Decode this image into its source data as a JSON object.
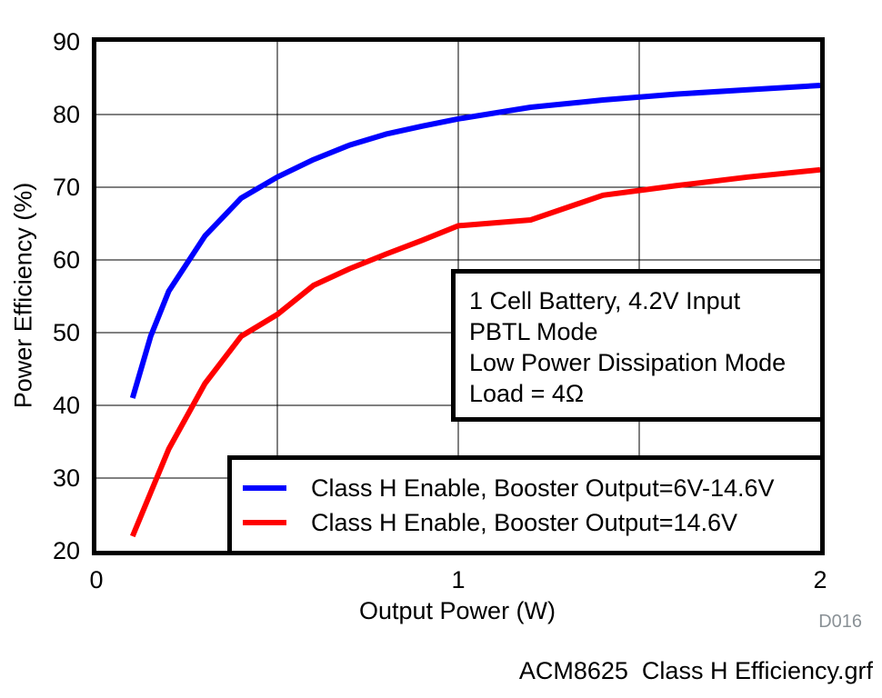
{
  "figure": {
    "watermark": "D016",
    "footer": "ACM8625  Class H Efficiency.grf"
  },
  "chart_data": {
    "type": "line",
    "title": "",
    "xlabel": "Output Power (W)",
    "ylabel": "Power Efficiency (%)",
    "xlim": [
      0,
      2
    ],
    "ylim": [
      20,
      90
    ],
    "x_major_ticks": [
      0,
      1,
      2
    ],
    "x_grid_step": 0.5,
    "y_tick_step": 10,
    "grid": true,
    "grid_color": "#000000",
    "legend_position": "inside-bottom-right",
    "annotation": {
      "lines": [
        "1 Cell Battery, 4.2V Input",
        "PBTL Mode",
        "Low Power Dissipation Mode",
        "Load = 4Ω"
      ]
    },
    "x": [
      0.1,
      0.15,
      0.2,
      0.3,
      0.4,
      0.5,
      0.6,
      0.7,
      0.8,
      0.9,
      1.0,
      1.2,
      1.4,
      1.6,
      1.8,
      2.0
    ],
    "series": [
      {
        "name": "Class H Enable, Booster Output=6V-14.6V",
        "color": "#0000ff",
        "values": [
          41,
          49.5,
          55.7,
          63.3,
          68.5,
          71.4,
          73.8,
          75.8,
          77.3,
          78.4,
          79.4,
          81.0,
          82.0,
          82.8,
          83.4,
          84.0
        ]
      },
      {
        "name": "Class H Enable, Booster Output=14.6V",
        "color": "#ff0000",
        "values": [
          22,
          28,
          34,
          43,
          49.5,
          52.5,
          56.5,
          58.8,
          60.8,
          62.7,
          64.7,
          65.5,
          68.9,
          70.2,
          71.4,
          72.4
        ]
      }
    ]
  }
}
